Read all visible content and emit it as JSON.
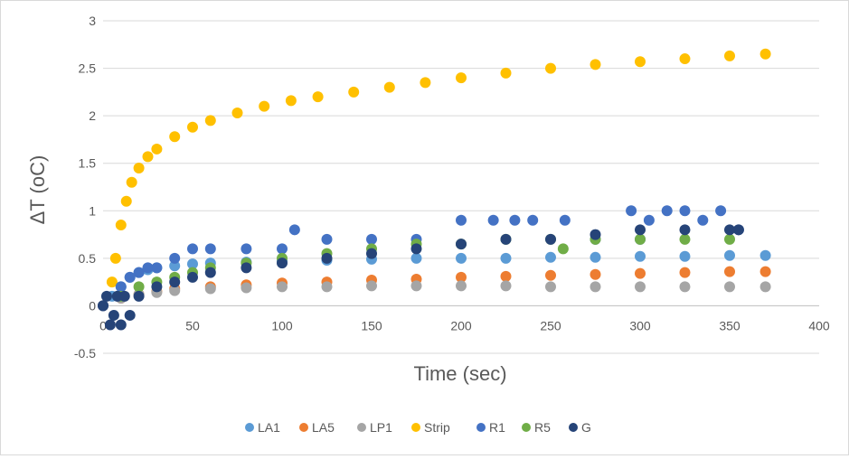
{
  "chart_data": {
    "type": "scatter",
    "title": "",
    "xlabel": "Time (sec)",
    "ylabel": "ΔT (oC)",
    "xlim": [
      0,
      400
    ],
    "ylim": [
      -0.5,
      3
    ],
    "x_ticks": [
      0,
      50,
      100,
      150,
      200,
      250,
      300,
      350,
      400
    ],
    "y_ticks": [
      -0.5,
      0,
      0.5,
      1,
      1.5,
      2,
      2.5,
      3
    ],
    "y_tick_labels": [
      "-0.5",
      "0",
      "0.5",
      "1",
      "1.5",
      "2",
      "2.5",
      "3"
    ],
    "grid": "horizontal",
    "legend_position": "bottom",
    "series": [
      {
        "name": "LA1",
        "color": "#5B9BD5",
        "x": [
          0,
          5,
          10,
          15,
          20,
          25,
          30,
          40,
          50,
          60,
          80,
          100,
          125,
          150,
          175,
          200,
          225,
          250,
          275,
          300,
          325,
          350,
          370
        ],
        "y": [
          0,
          0.1,
          0.2,
          0.3,
          0.35,
          0.38,
          0.4,
          0.42,
          0.44,
          0.45,
          0.46,
          0.47,
          0.48,
          0.49,
          0.5,
          0.5,
          0.5,
          0.51,
          0.51,
          0.52,
          0.52,
          0.53,
          0.53
        ]
      },
      {
        "name": "LA5",
        "color": "#ED7D31",
        "x": [
          0,
          10,
          20,
          30,
          40,
          60,
          80,
          100,
          125,
          150,
          175,
          200,
          225,
          250,
          275,
          300,
          325,
          350,
          370
        ],
        "y": [
          0,
          0.08,
          0.12,
          0.15,
          0.18,
          0.2,
          0.22,
          0.24,
          0.25,
          0.27,
          0.28,
          0.3,
          0.31,
          0.32,
          0.33,
          0.34,
          0.35,
          0.36,
          0.36
        ]
      },
      {
        "name": "LP1",
        "color": "#A5A5A5",
        "x": [
          0,
          10,
          20,
          30,
          40,
          60,
          80,
          100,
          125,
          150,
          175,
          200,
          225,
          250,
          275,
          300,
          325,
          350,
          370
        ],
        "y": [
          0,
          0.08,
          0.12,
          0.14,
          0.16,
          0.18,
          0.19,
          0.2,
          0.2,
          0.21,
          0.21,
          0.21,
          0.21,
          0.2,
          0.2,
          0.2,
          0.2,
          0.2,
          0.2
        ]
      },
      {
        "name": "Strip",
        "color": "#FFC000",
        "x": [
          5,
          7,
          10,
          13,
          16,
          20,
          25,
          30,
          40,
          50,
          60,
          75,
          90,
          105,
          120,
          140,
          160,
          180,
          200,
          225,
          250,
          275,
          300,
          325,
          350,
          370
        ],
        "y": [
          0.25,
          0.5,
          0.85,
          1.1,
          1.3,
          1.45,
          1.57,
          1.65,
          1.78,
          1.88,
          1.95,
          2.03,
          2.1,
          2.16,
          2.2,
          2.25,
          2.3,
          2.35,
          2.4,
          2.45,
          2.5,
          2.54,
          2.57,
          2.6,
          2.63,
          2.65
        ]
      },
      {
        "name": "R1",
        "color": "#4472C4",
        "x": [
          0,
          10,
          15,
          20,
          25,
          30,
          40,
          50,
          60,
          80,
          100,
          107,
          125,
          150,
          175,
          200,
          218,
          230,
          240,
          258,
          275,
          295,
          300,
          305,
          315,
          325,
          335,
          345,
          355
        ],
        "y": [
          0,
          0.2,
          0.3,
          0.35,
          0.4,
          0.4,
          0.5,
          0.6,
          0.6,
          0.6,
          0.6,
          0.8,
          0.7,
          0.7,
          0.7,
          0.9,
          0.9,
          0.9,
          0.9,
          0.9,
          0.7,
          1.0,
          0.7,
          0.9,
          1.0,
          1.0,
          0.9,
          1.0,
          0.8
        ]
      },
      {
        "name": "R5",
        "color": "#70AD47",
        "x": [
          10,
          20,
          30,
          40,
          50,
          60,
          80,
          100,
          125,
          150,
          175,
          200,
          225,
          250,
          257,
          275,
          300,
          325,
          350
        ],
        "y": [
          0.1,
          0.2,
          0.25,
          0.3,
          0.35,
          0.4,
          0.45,
          0.5,
          0.55,
          0.6,
          0.65,
          0.65,
          0.7,
          0.7,
          0.6,
          0.7,
          0.7,
          0.7,
          0.7
        ]
      },
      {
        "name": "G",
        "color": "#264478",
        "x": [
          0,
          2,
          4,
          6,
          8,
          10,
          12,
          15,
          20,
          30,
          40,
          50,
          60,
          80,
          100,
          125,
          150,
          175,
          200,
          225,
          250,
          275,
          300,
          325,
          350,
          355
        ],
        "y": [
          0,
          0.1,
          -0.2,
          -0.1,
          0.1,
          -0.2,
          0.1,
          -0.1,
          0.1,
          0.2,
          0.25,
          0.3,
          0.35,
          0.4,
          0.45,
          0.5,
          0.55,
          0.6,
          0.65,
          0.7,
          0.7,
          0.75,
          0.8,
          0.8,
          0.8,
          0.8
        ]
      }
    ]
  }
}
